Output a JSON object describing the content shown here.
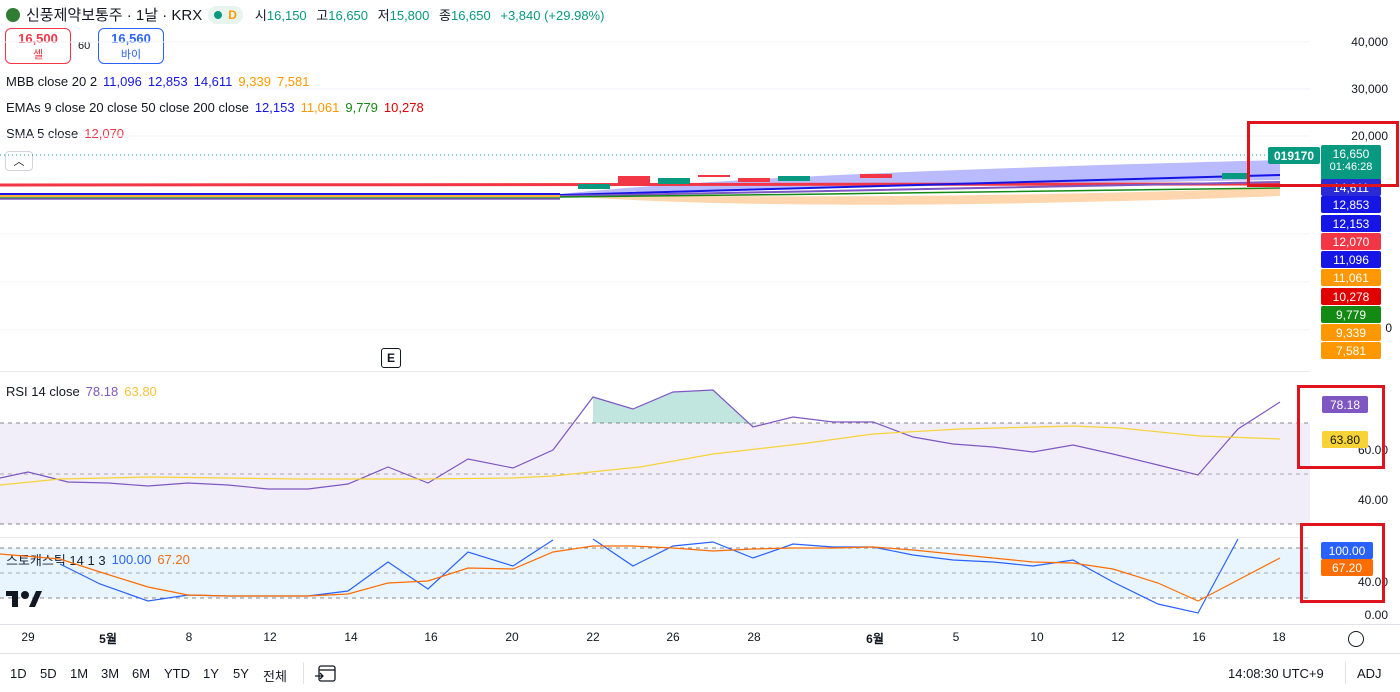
{
  "header": {
    "symbol": "신풍제약보통주 · 1날 · KRX",
    "status_letter": "D",
    "ohlc": [
      {
        "k": "시",
        "v": "16,150"
      },
      {
        "k": "고",
        "v": "16,650"
      },
      {
        "k": "저",
        "v": "15,800"
      },
      {
        "k": "종",
        "v": "16,650"
      }
    ],
    "change": "+3,840 (+29.98%)"
  },
  "trade": {
    "sell_price": "16,500",
    "sell_label": "셀",
    "spread": "60",
    "buy_price": "16,560",
    "buy_label": "바이"
  },
  "indicators": {
    "mbb": {
      "name": "MBB close 20 2",
      "values": [
        "11,096",
        "12,853",
        "14,611",
        "9,339",
        "7,581"
      ]
    },
    "emas": {
      "name": "EMAs 9 close 20 close 50 close 200 close",
      "values": [
        "12,153",
        "11,061",
        "9,779",
        "10,278"
      ]
    },
    "sma": {
      "name": "SMA 5 close",
      "values": [
        "12,070"
      ]
    },
    "rsi": {
      "name": "RSI 14 close",
      "values": [
        "78.18",
        "63.80"
      ]
    },
    "stoch": {
      "name": "스토캐스틱 14 1 3",
      "values": [
        "100.00",
        "67.20"
      ]
    }
  },
  "price_axis": {
    "labels": [
      "40,000",
      "30,000",
      "20,000"
    ],
    "partial_label": "0",
    "last_price_box": {
      "price": "16,650",
      "countdown": "01:46:28"
    },
    "series_tag": "019170",
    "tags": [
      {
        "text": "14,611",
        "color": "#2a2ad6"
      },
      {
        "text": "12,853",
        "color": "#1515e6"
      },
      {
        "text": "12,153",
        "color": "#1515e6"
      },
      {
        "text": "12,070",
        "color": "#f23645"
      },
      {
        "text": "11,096",
        "color": "#1515e6"
      },
      {
        "text": "11,061",
        "color": "#ff9800"
      },
      {
        "text": "10,278",
        "color": "#e00000"
      },
      {
        "text": "9,779",
        "color": "#138a13"
      },
      {
        "text": "9,339",
        "color": "#ff9800"
      },
      {
        "text": "7,581",
        "color": "#ff9800"
      }
    ]
  },
  "rsi_axis": {
    "labels": [
      "60.00",
      "40.00"
    ],
    "rsi_tag": "78.18",
    "ma_tag": "63.80"
  },
  "stoch_axis": {
    "labels": [
      "40.00",
      "0.00"
    ],
    "k_tag": "100.00",
    "d_tag": "67.20"
  },
  "x_axis": {
    "labels": [
      {
        "t": "29",
        "bold": false
      },
      {
        "t": "5월",
        "bold": true
      },
      {
        "t": "8",
        "bold": false
      },
      {
        "t": "12",
        "bold": false
      },
      {
        "t": "14",
        "bold": false
      },
      {
        "t": "16",
        "bold": false
      },
      {
        "t": "20",
        "bold": false
      },
      {
        "t": "22",
        "bold": false
      },
      {
        "t": "26",
        "bold": false
      },
      {
        "t": "28",
        "bold": false
      },
      {
        "t": "6월",
        "bold": true
      },
      {
        "t": "5",
        "bold": false
      },
      {
        "t": "10",
        "bold": false
      },
      {
        "t": "12",
        "bold": false
      },
      {
        "t": "16",
        "bold": false
      },
      {
        "t": "18",
        "bold": false
      }
    ]
  },
  "bottom": {
    "timeframes": [
      "1D",
      "5D",
      "1M",
      "3M",
      "6M",
      "YTD",
      "1Y",
      "5Y",
      "전체"
    ],
    "clock": "14:08:30 UTC+9",
    "adj": "ADJ"
  },
  "colors": {
    "up": "#089981",
    "down": "#f23645",
    "rsi": "#7e57c2",
    "rsi_ma": "#f7d336",
    "stoch_k": "#2962ff",
    "stoch_d": "#ff6d00",
    "annotation": "#e0141e"
  },
  "misc": {
    "earnings_marker": "E",
    "collapse_icon": "chevron-up-icon",
    "logo": "tradingview-logo"
  }
}
